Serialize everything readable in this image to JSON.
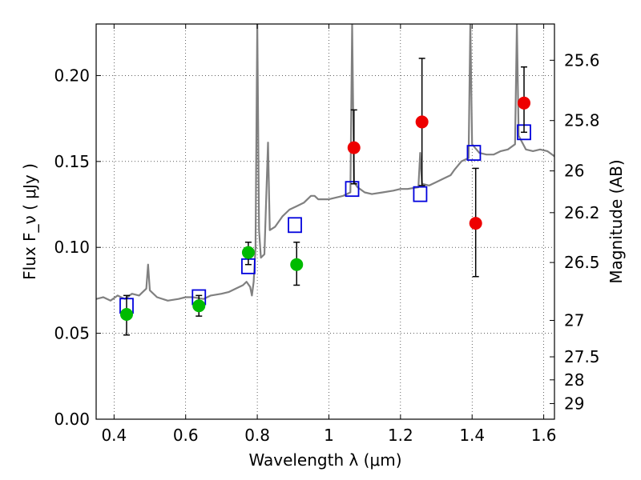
{
  "chart_data": {
    "type": "scatter",
    "xlabel": "Wavelength  λ (μm)",
    "ylabel": "Flux  F_ν  ( μJy )",
    "y2label": "Magnitude (AB)",
    "xlim": [
      0.35,
      1.63
    ],
    "ylim": [
      0.0,
      0.23
    ],
    "xticks": [
      0.4,
      0.6,
      0.8,
      1.0,
      1.2,
      1.4,
      1.6
    ],
    "xtick_labels": [
      "0.4",
      "0.6",
      "0.8",
      "1",
      "1.2",
      "1.4",
      "1.6"
    ],
    "yticks": [
      0.0,
      0.05,
      0.1,
      0.15,
      0.2
    ],
    "ytick_labels": [
      "0.00",
      "0.05",
      "0.10",
      "0.15",
      "0.20"
    ],
    "y2ticks": [
      {
        "label": "25.6",
        "flux": 0.2089
      },
      {
        "label": "25.8",
        "flux": 0.1738
      },
      {
        "label": "26",
        "flux": 0.1445
      },
      {
        "label": "26.2",
        "flux": 0.1202
      },
      {
        "label": "26.5",
        "flux": 0.0912
      },
      {
        "label": "27",
        "flux": 0.0575
      },
      {
        "label": "27.5",
        "flux": 0.0363
      },
      {
        "label": "28",
        "flux": 0.0229
      },
      {
        "label": "29",
        "flux": 0.0091
      }
    ],
    "grid": true,
    "series": [
      {
        "kind": "line",
        "color": "#808080",
        "points": [
          [
            0.35,
            0.07
          ],
          [
            0.37,
            0.071
          ],
          [
            0.39,
            0.069
          ],
          [
            0.41,
            0.072
          ],
          [
            0.43,
            0.07
          ],
          [
            0.45,
            0.073
          ],
          [
            0.47,
            0.072
          ],
          [
            0.48,
            0.074
          ],
          [
            0.49,
            0.076
          ],
          [
            0.495,
            0.09
          ],
          [
            0.5,
            0.075
          ],
          [
            0.52,
            0.071
          ],
          [
            0.55,
            0.069
          ],
          [
            0.58,
            0.07
          ],
          [
            0.6,
            0.071
          ],
          [
            0.62,
            0.071
          ],
          [
            0.65,
            0.07
          ],
          [
            0.67,
            0.072
          ],
          [
            0.7,
            0.073
          ],
          [
            0.72,
            0.074
          ],
          [
            0.74,
            0.076
          ],
          [
            0.76,
            0.078
          ],
          [
            0.77,
            0.08
          ],
          [
            0.78,
            0.077
          ],
          [
            0.785,
            0.072
          ],
          [
            0.79,
            0.08
          ],
          [
            0.795,
            0.1
          ],
          [
            0.8,
            0.23
          ],
          [
            0.805,
            0.11
          ],
          [
            0.81,
            0.094
          ],
          [
            0.82,
            0.096
          ],
          [
            0.83,
            0.161
          ],
          [
            0.835,
            0.11
          ],
          [
            0.85,
            0.112
          ],
          [
            0.87,
            0.118
          ],
          [
            0.89,
            0.122
          ],
          [
            0.91,
            0.124
          ],
          [
            0.93,
            0.126
          ],
          [
            0.95,
            0.13
          ],
          [
            0.96,
            0.13
          ],
          [
            0.97,
            0.128
          ],
          [
            1.0,
            0.128
          ],
          [
            1.02,
            0.129
          ],
          [
            1.04,
            0.13
          ],
          [
            1.06,
            0.132
          ],
          [
            1.065,
            0.23
          ],
          [
            1.07,
            0.138
          ],
          [
            1.08,
            0.135
          ],
          [
            1.1,
            0.132
          ],
          [
            1.12,
            0.131
          ],
          [
            1.15,
            0.132
          ],
          [
            1.18,
            0.133
          ],
          [
            1.2,
            0.134
          ],
          [
            1.22,
            0.134
          ],
          [
            1.25,
            0.135
          ],
          [
            1.255,
            0.155
          ],
          [
            1.26,
            0.137
          ],
          [
            1.28,
            0.136
          ],
          [
            1.3,
            0.138
          ],
          [
            1.32,
            0.14
          ],
          [
            1.34,
            0.142
          ],
          [
            1.35,
            0.145
          ],
          [
            1.37,
            0.15
          ],
          [
            1.39,
            0.152
          ],
          [
            1.395,
            0.23
          ],
          [
            1.4,
            0.16
          ],
          [
            1.42,
            0.155
          ],
          [
            1.44,
            0.154
          ],
          [
            1.46,
            0.154
          ],
          [
            1.48,
            0.156
          ],
          [
            1.5,
            0.157
          ],
          [
            1.52,
            0.16
          ],
          [
            1.525,
            0.23
          ],
          [
            1.53,
            0.165
          ],
          [
            1.55,
            0.157
          ],
          [
            1.57,
            0.156
          ],
          [
            1.59,
            0.157
          ],
          [
            1.61,
            0.156
          ],
          [
            1.63,
            0.153
          ]
        ]
      },
      {
        "kind": "markers",
        "marker": "open-square",
        "color": "#0000dd",
        "points": [
          [
            0.435,
            0.066
          ],
          [
            0.637,
            0.071
          ],
          [
            0.775,
            0.089
          ],
          [
            0.905,
            0.113
          ],
          [
            1.065,
            0.134
          ],
          [
            1.255,
            0.131
          ],
          [
            1.405,
            0.155
          ],
          [
            1.545,
            0.167
          ]
        ]
      },
      {
        "kind": "markers",
        "marker": "filled-circle",
        "color": "#00bb00",
        "points": [
          [
            0.435,
            0.061,
            0.049,
            0.072
          ],
          [
            0.637,
            0.066,
            0.06,
            0.072
          ],
          [
            0.775,
            0.097,
            0.09,
            0.103
          ],
          [
            0.91,
            0.09,
            0.078,
            0.103
          ]
        ]
      },
      {
        "kind": "markers",
        "marker": "filled-circle",
        "color": "#ee0000",
        "points": [
          [
            1.07,
            0.158,
            0.137,
            0.18
          ],
          [
            1.26,
            0.173,
            0.136,
            0.21
          ],
          [
            1.41,
            0.114,
            0.083,
            0.146
          ],
          [
            1.545,
            0.184,
            0.167,
            0.205
          ]
        ]
      }
    ]
  }
}
